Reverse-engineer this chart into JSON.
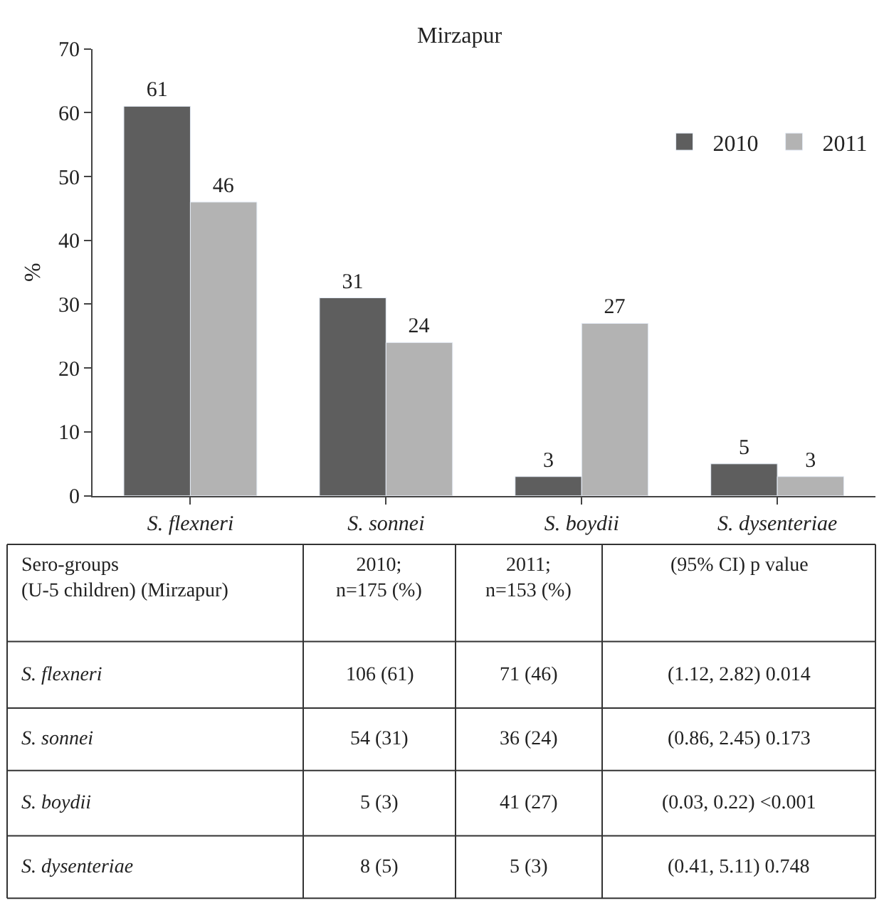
{
  "chart_data": [
    {
      "type": "bar",
      "title": "Mirzapur",
      "ylabel": "%",
      "categories": [
        "S. flexneri",
        "S. sonnei",
        "S. boydii",
        "S. dysenteriae"
      ],
      "series": [
        {
          "name": "2010",
          "color": "#5e5e5e",
          "values": [
            61,
            31,
            3,
            5
          ]
        },
        {
          "name": "2011",
          "color": "#b3b3b3",
          "values": [
            46,
            24,
            27,
            3
          ]
        }
      ],
      "ylim": [
        0,
        70
      ],
      "yticks": [
        0,
        10,
        20,
        30,
        40,
        50,
        60,
        70
      ],
      "legend": "top right",
      "data_labels": true
    },
    {
      "type": "other",
      "annotations": [
        "Sero-groups\n(U-5 children) (Mirzapur)",
        "2010;\nn=175 (%)",
        "2011;\nn=153 (%)",
        "(95% CI) p value",
        "S. flexneri",
        "106 (61)",
        "71 (46)",
        "(1.12, 2.82) 0.014",
        "S. sonnei",
        "54 (31)",
        "36 (24)",
        "(0.86, 2.45) 0.173",
        "S. boydii",
        "5 (3)",
        "41 (27)",
        "(0.03, 0.22) <0.001",
        "S. dysenteriae",
        "8 (5)",
        "5 (3)",
        "(0.41, 5.11) 0.748"
      ]
    }
  ]
}
